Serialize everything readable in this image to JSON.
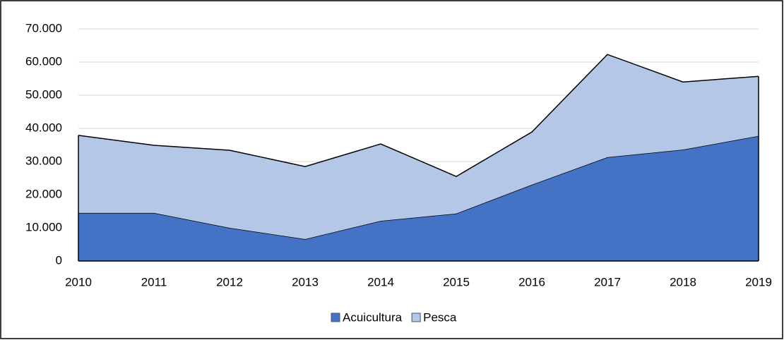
{
  "chart_data": {
    "type": "stacked-area",
    "categories": [
      "2010",
      "2011",
      "2012",
      "2013",
      "2014",
      "2015",
      "2016",
      "2017",
      "2018",
      "2019"
    ],
    "series": [
      {
        "name": "Acuicultura",
        "color": "#4472c4",
        "values": [
          14500,
          14500,
          10000,
          6600,
          12100,
          14300,
          23000,
          31300,
          33600,
          37700
        ]
      },
      {
        "name": "Pesca",
        "color": "#b4c7e7",
        "values": [
          23400,
          20400,
          23400,
          21900,
          23200,
          11200,
          15900,
          31000,
          20400,
          18000
        ]
      }
    ],
    "ylim": [
      0,
      70000
    ],
    "yticks": [
      0,
      {
        "value": 10000,
        "label": "10.000"
      },
      {
        "value": 20000,
        "label": "20.000"
      },
      {
        "value": 30000,
        "label": "30.000"
      },
      {
        "value": 40000,
        "label": "40.000"
      },
      {
        "value": 50000,
        "label": "50.000"
      },
      {
        "value": 60000,
        "label": "60.000"
      },
      {
        "value": 70000,
        "label": "70.000"
      }
    ],
    "grid": true,
    "legend": "bottom"
  }
}
